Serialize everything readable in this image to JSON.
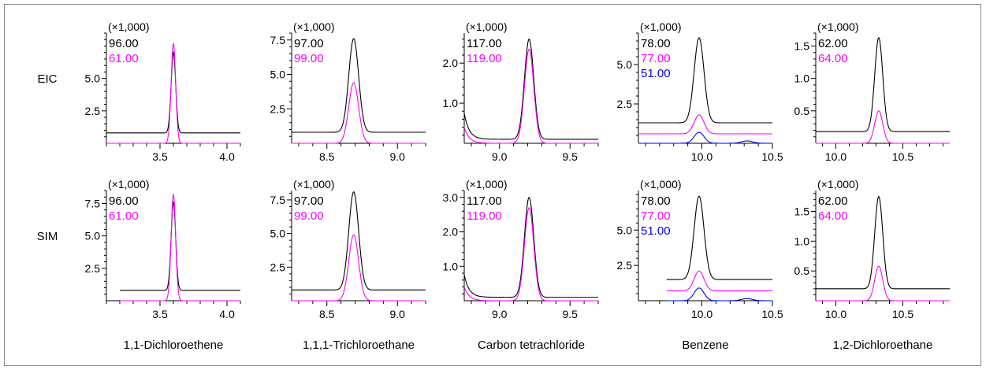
{
  "figure": {
    "rows": [
      "EIC",
      "SIM"
    ],
    "panels": [
      {
        "compound": "1,1-Dichloroethene",
        "x_ticks": [
          "3.5",
          "4.0"
        ],
        "xlim": [
          3.1,
          4.1
        ],
        "traces": [
          {
            "mz": "96.00",
            "color": "#000000"
          },
          {
            "mz": "61.00",
            "color": "#ff00ff"
          }
        ]
      },
      {
        "compound": "1,1,1-Trichloroethane",
        "x_ticks": [
          "8.5",
          "9.0"
        ],
        "xlim": [
          8.25,
          9.2
        ],
        "traces": [
          {
            "mz": "97.00",
            "color": "#000000"
          },
          {
            "mz": "99.00",
            "color": "#ff00ff"
          }
        ]
      },
      {
        "compound": "Carbon tetrachloride",
        "x_ticks": [
          "9.0",
          "9.5"
        ],
        "xlim": [
          8.75,
          9.7
        ],
        "traces": [
          {
            "mz": "117.00",
            "color": "#000000"
          },
          {
            "mz": "119.00",
            "color": "#ff00ff"
          }
        ]
      },
      {
        "compound": "Benzene",
        "x_ticks": [
          "10.0",
          "10.5"
        ],
        "xlim": [
          9.55,
          10.5
        ],
        "traces": [
          {
            "mz": "78.00",
            "color": "#000000"
          },
          {
            "mz": "77.00",
            "color": "#ff00ff"
          },
          {
            "mz": "51.00",
            "color": "#0000ff"
          }
        ]
      },
      {
        "compound": "1,2-Dichloroethane",
        "x_ticks": [
          "10.0",
          "10.5"
        ],
        "xlim": [
          9.85,
          10.85
        ],
        "traces": [
          {
            "mz": "62.00",
            "color": "#000000"
          },
          {
            "mz": "64.00",
            "color": "#ff00ff"
          }
        ]
      }
    ]
  },
  "chart_data": [
    {
      "type": "line",
      "row": "EIC",
      "panel": "1,1-Dichloroethene",
      "multiplier": "(×1,000)",
      "xlim": [
        3.1,
        4.1
      ],
      "ylim": [
        0,
        8.5
      ],
      "x_ticks": [
        3.5,
        4.0
      ],
      "y_ticks": [
        2.5,
        5.0
      ],
      "y_tick_labels": [
        "2.5",
        "5.0"
      ],
      "series": [
        {
          "name": "96.00",
          "color": "#000000",
          "baseline": 0.8,
          "peaks": [
            {
              "x": 3.6,
              "height": 6.2,
              "width": 0.017
            }
          ]
        },
        {
          "name": "61.00",
          "color": "#ff00ff",
          "baseline": 0.0,
          "peaks": [
            {
              "x": 3.6,
              "height": 7.7,
              "width": 0.017
            }
          ]
        }
      ]
    },
    {
      "type": "line",
      "row": "EIC",
      "panel": "1,1,1-Trichloroethane",
      "multiplier": "(×1,000)",
      "xlim": [
        8.25,
        9.2
      ],
      "ylim": [
        0,
        8.0
      ],
      "x_ticks": [
        8.5,
        9.0
      ],
      "y_ticks": [
        2.5,
        5.0,
        7.5
      ],
      "y_tick_labels": [
        "2.5",
        "5.0",
        "7.5"
      ],
      "series": [
        {
          "name": "97.00",
          "color": "#000000",
          "baseline": 0.8,
          "peaks": [
            {
              "x": 8.69,
              "height": 6.8,
              "width": 0.035
            }
          ]
        },
        {
          "name": "99.00",
          "color": "#ff00ff",
          "baseline": 0.0,
          "peaks": [
            {
              "x": 8.69,
              "height": 4.4,
              "width": 0.035
            }
          ]
        }
      ]
    },
    {
      "type": "line",
      "row": "EIC",
      "panel": "Carbon tetrachloride",
      "multiplier": "(×1,000)",
      "xlim": [
        8.75,
        9.7
      ],
      "ylim": [
        0,
        2.75
      ],
      "x_ticks": [
        9.0,
        9.5
      ],
      "y_ticks": [
        1.0,
        2.0
      ],
      "y_tick_labels": [
        "1.0",
        "2.0"
      ],
      "series": [
        {
          "name": "117.00",
          "color": "#000000",
          "baseline": 0.1,
          "tail_start": 0.75,
          "peaks": [
            {
              "x": 9.21,
              "height": 2.5,
              "width": 0.033
            }
          ]
        },
        {
          "name": "119.00",
          "color": "#ff00ff",
          "baseline": 0.0,
          "tail_start": 0.4,
          "peaks": [
            {
              "x": 9.21,
              "height": 2.35,
              "width": 0.033
            }
          ]
        }
      ]
    },
    {
      "type": "line",
      "row": "EIC",
      "panel": "Benzene",
      "multiplier": "(×1,000)",
      "xlim": [
        9.55,
        10.5
      ],
      "ylim": [
        0,
        7.0
      ],
      "x_ticks": [
        10.0,
        10.5
      ],
      "y_ticks": [
        2.5,
        5.0
      ],
      "y_tick_labels": [
        "2.5",
        "5.0"
      ],
      "series": [
        {
          "name": "78.00",
          "color": "#000000",
          "baseline": 1.3,
          "peaks": [
            {
              "x": 9.98,
              "height": 5.4,
              "width": 0.035
            }
          ]
        },
        {
          "name": "77.00",
          "color": "#ff00ff",
          "baseline": 0.6,
          "peaks": [
            {
              "x": 9.98,
              "height": 1.2,
              "width": 0.035
            }
          ]
        },
        {
          "name": "51.00",
          "color": "#0000ff",
          "baseline": 0.0,
          "peaks": [
            {
              "x": 9.98,
              "height": 0.7,
              "width": 0.035
            },
            {
              "x": 10.32,
              "height": 0.15,
              "width": 0.04
            }
          ]
        }
      ]
    },
    {
      "type": "line",
      "row": "EIC",
      "panel": "1,2-Dichloroethane",
      "multiplier": "(×1,000)",
      "xlim": [
        9.85,
        10.85
      ],
      "ylim": [
        0,
        1.7
      ],
      "x_ticks": [
        10.0,
        10.5
      ],
      "y_ticks": [
        0.5,
        1.0,
        1.5
      ],
      "y_tick_labels": [
        "0.5",
        "1.0",
        "1.5"
      ],
      "series": [
        {
          "name": "62.00",
          "color": "#000000",
          "baseline": 0.18,
          "peaks": [
            {
              "x": 10.32,
              "height": 1.45,
              "width": 0.03
            }
          ]
        },
        {
          "name": "64.00",
          "color": "#ff00ff",
          "baseline": 0.0,
          "peaks": [
            {
              "x": 10.32,
              "height": 0.5,
              "width": 0.03
            }
          ]
        }
      ]
    },
    {
      "type": "line",
      "row": "SIM",
      "panel": "1,1-Dichloroethene",
      "multiplier": "(×1,000)",
      "xlim": [
        3.1,
        4.1
      ],
      "ylim": [
        0,
        8.5
      ],
      "x_ticks": [
        3.5,
        4.0
      ],
      "y_ticks": [
        2.5,
        5.0,
        7.5
      ],
      "y_tick_labels": [
        "2.5",
        "5.0",
        "7.5"
      ],
      "series": [
        {
          "name": "96.00",
          "color": "#000000",
          "baseline": 0.8,
          "start_x": 3.2,
          "peaks": [
            {
              "x": 3.6,
              "height": 6.8,
              "width": 0.017
            }
          ]
        },
        {
          "name": "61.00",
          "color": "#ff00ff",
          "baseline": 0.0,
          "start_x": 3.2,
          "peaks": [
            {
              "x": 3.6,
              "height": 8.2,
              "width": 0.017
            }
          ]
        }
      ]
    },
    {
      "type": "line",
      "row": "SIM",
      "panel": "1,1,1-Trichloroethane",
      "multiplier": "(×1,000)",
      "xlim": [
        8.25,
        9.2
      ],
      "ylim": [
        0,
        8.2
      ],
      "x_ticks": [
        8.5,
        9.0
      ],
      "y_ticks": [
        2.5,
        5.0,
        7.5
      ],
      "y_tick_labels": [
        "2.5",
        "5.0",
        "7.5"
      ],
      "series": [
        {
          "name": "97.00",
          "color": "#000000",
          "baseline": 0.8,
          "peaks": [
            {
              "x": 8.69,
              "height": 7.3,
              "width": 0.035
            }
          ]
        },
        {
          "name": "99.00",
          "color": "#ff00ff",
          "baseline": 0.0,
          "peaks": [
            {
              "x": 8.69,
              "height": 4.9,
              "width": 0.035
            }
          ]
        }
      ]
    },
    {
      "type": "line",
      "row": "SIM",
      "panel": "Carbon tetrachloride",
      "multiplier": "(×1,000)",
      "xlim": [
        8.75,
        9.7
      ],
      "ylim": [
        0,
        3.2
      ],
      "x_ticks": [
        9.0,
        9.5
      ],
      "y_ticks": [
        1.0,
        2.0,
        3.0
      ],
      "y_tick_labels": [
        "1.0",
        "2.0",
        "3.0"
      ],
      "series": [
        {
          "name": "117.00",
          "color": "#000000",
          "baseline": 0.1,
          "tail_start": 0.75,
          "peaks": [
            {
              "x": 9.21,
              "height": 2.9,
              "width": 0.033
            }
          ]
        },
        {
          "name": "119.00",
          "color": "#ff00ff",
          "baseline": 0.0,
          "tail_start": 0.4,
          "peaks": [
            {
              "x": 9.21,
              "height": 2.7,
              "width": 0.033
            }
          ]
        }
      ]
    },
    {
      "type": "line",
      "row": "SIM",
      "panel": "Benzene",
      "multiplier": "(×1,000)",
      "xlim": [
        9.55,
        10.5
      ],
      "ylim": [
        0,
        7.8
      ],
      "x_ticks": [
        10.0,
        10.5
      ],
      "y_ticks": [
        2.5,
        5.0
      ],
      "y_tick_labels": [
        "2.5",
        "5.0"
      ],
      "series": [
        {
          "name": "78.00",
          "color": "#000000",
          "baseline": 1.5,
          "start_x": 9.75,
          "peaks": [
            {
              "x": 9.98,
              "height": 5.9,
              "width": 0.035
            }
          ]
        },
        {
          "name": "77.00",
          "color": "#ff00ff",
          "baseline": 0.7,
          "start_x": 9.75,
          "peaks": [
            {
              "x": 9.98,
              "height": 1.4,
              "width": 0.035
            }
          ]
        },
        {
          "name": "51.00",
          "color": "#0000ff",
          "baseline": 0.0,
          "start_x": 9.75,
          "peaks": [
            {
              "x": 9.98,
              "height": 0.9,
              "width": 0.035
            },
            {
              "x": 10.32,
              "height": 0.15,
              "width": 0.04
            }
          ]
        }
      ]
    },
    {
      "type": "line",
      "row": "SIM",
      "panel": "1,2-Dichloroethane",
      "multiplier": "(×1,000)",
      "xlim": [
        9.85,
        10.85
      ],
      "ylim": [
        0,
        1.85
      ],
      "x_ticks": [
        10.0,
        10.5
      ],
      "y_ticks": [
        0.5,
        1.0,
        1.5
      ],
      "y_tick_labels": [
        "0.5",
        "1.0",
        "1.5"
      ],
      "series": [
        {
          "name": "62.00",
          "color": "#000000",
          "baseline": 0.2,
          "peaks": [
            {
              "x": 10.32,
              "height": 1.55,
              "width": 0.03
            }
          ]
        },
        {
          "name": "64.00",
          "color": "#ff00ff",
          "baseline": 0.0,
          "peaks": [
            {
              "x": 10.32,
              "height": 0.58,
              "width": 0.03
            }
          ]
        }
      ]
    }
  ]
}
